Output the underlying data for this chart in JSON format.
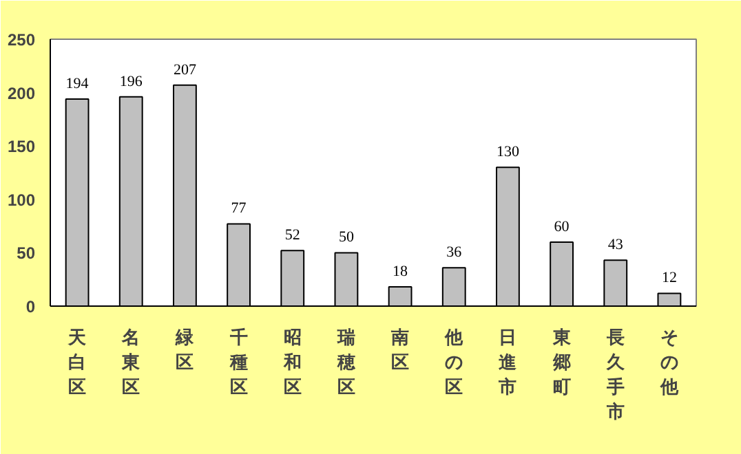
{
  "chart_data": {
    "type": "bar",
    "categories": [
      "天白区",
      "名東区",
      "緑区",
      "千種区",
      "昭和区",
      "瑞穂区",
      "南区",
      "他の区",
      "日進市",
      "東郷町",
      "長久手市",
      "その他"
    ],
    "values": [
      194,
      196,
      207,
      77,
      52,
      50,
      18,
      36,
      130,
      60,
      43,
      12
    ],
    "color": "#c0c0c0",
    "ylim": [
      0,
      250
    ],
    "yticks": [
      0,
      50,
      100,
      150,
      200,
      250
    ],
    "grid": false,
    "data_labels": true
  }
}
